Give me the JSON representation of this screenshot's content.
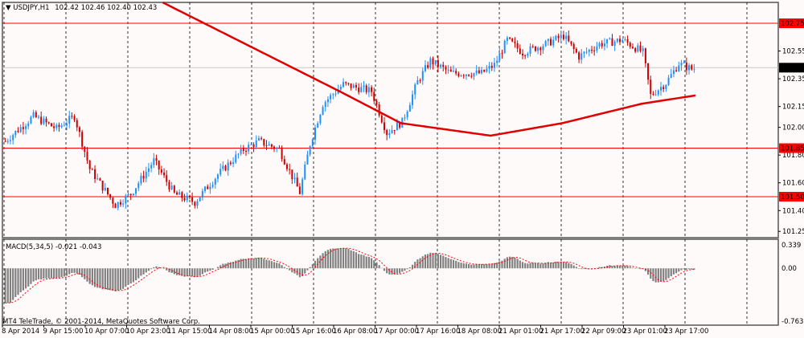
{
  "header": {
    "symbol": "USDJPY,H1",
    "ohlc": "102.42 102.46 102.40 102.43"
  },
  "indicator": {
    "label": "MACD(5,34,5) -0.021 -0.043"
  },
  "watermark": "MT4 TeleTrade, © 2001-2014, MetaQuotes Software Corp.",
  "price_axis": {
    "ticks": [
      "102.55",
      "102.35",
      "102.15",
      "102.00",
      "101.80",
      "101.60",
      "101.40",
      "101.25"
    ],
    "levels": [
      {
        "label": "102.75",
        "value": 102.75,
        "color": "#ff0000"
      },
      {
        "label": "101.85",
        "value": 101.85,
        "color": "#ff0000"
      },
      {
        "label": "101.50",
        "value": 101.5,
        "color": "#ff0000"
      }
    ],
    "current": {
      "label": "102.43",
      "value": 102.43,
      "color": "#000000"
    }
  },
  "macd_axis": {
    "ticks": [
      "0.339",
      "0.00",
      "-0.763"
    ]
  },
  "time_axis": [
    "8 Apr 2014",
    "9 Apr 15:00",
    "10 Apr 07:00",
    "10 Apr 23:00",
    "11 Apr 15:00",
    "14 Apr 08:00",
    "15 Apr 00:00",
    "15 Apr 16:00",
    "16 Apr 08:00",
    "17 Apr 00:00",
    "17 Apr 16:00",
    "18 Apr 08:00",
    "21 Apr 01:00",
    "21 Apr 17:00",
    "22 Apr 09:00",
    "23 Apr 01:00",
    "23 Apr 17:00"
  ],
  "colors": {
    "bull": "#1e90ff",
    "bear": "#cc0000",
    "ma": "#e00000",
    "macd_hist": "#808080",
    "macd_signal": "#ff0000"
  },
  "chart_data": {
    "type": "candlestick",
    "bars": 270,
    "price_path": [
      [
        0,
        101.9
      ],
      [
        11,
        102.08
      ],
      [
        20,
        101.99
      ],
      [
        27,
        102.08
      ],
      [
        33,
        101.7
      ],
      [
        43,
        101.44
      ],
      [
        49,
        101.52
      ],
      [
        58,
        101.76
      ],
      [
        66,
        101.52
      ],
      [
        74,
        101.46
      ],
      [
        83,
        101.66
      ],
      [
        93,
        101.84
      ],
      [
        99,
        101.9
      ],
      [
        107,
        101.84
      ],
      [
        115,
        101.53
      ],
      [
        119,
        101.88
      ],
      [
        124,
        102.17
      ],
      [
        132,
        102.31
      ],
      [
        143,
        102.26
      ],
      [
        149,
        101.96
      ],
      [
        155,
        102.04
      ],
      [
        161,
        102.33
      ],
      [
        166,
        102.48
      ],
      [
        174,
        102.39
      ],
      [
        186,
        102.39
      ],
      [
        191,
        102.45
      ],
      [
        196,
        102.63
      ],
      [
        202,
        102.54
      ],
      [
        211,
        102.6
      ],
      [
        218,
        102.66
      ],
      [
        224,
        102.51
      ],
      [
        232,
        102.6
      ],
      [
        241,
        102.63
      ],
      [
        249,
        102.54
      ],
      [
        252,
        102.23
      ],
      [
        258,
        102.32
      ],
      [
        263,
        102.46
      ],
      [
        268,
        102.42
      ],
      [
        270,
        102.43
      ]
    ],
    "ma_path": [
      [
        62,
        102.9
      ],
      [
        131,
        102.26
      ],
      [
        155,
        102.03
      ],
      [
        190,
        101.94
      ],
      [
        218,
        102.03
      ],
      [
        249,
        102.17
      ],
      [
        270,
        102.23
      ]
    ],
    "price_range": [
      101.2,
      102.9
    ],
    "macd_range": [
      -0.763,
      0.339
    ]
  }
}
